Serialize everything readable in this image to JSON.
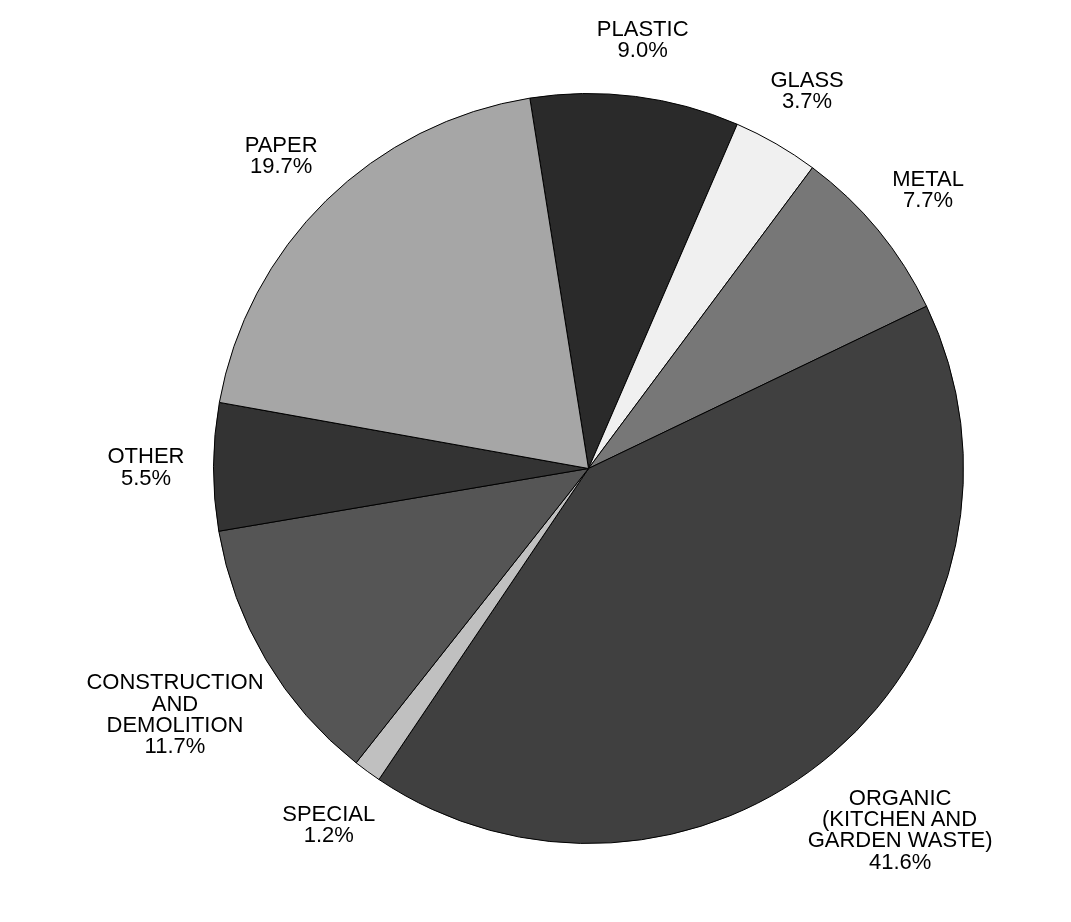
{
  "chart_data": {
    "type": "pie",
    "categories": [
      "PLASTIC",
      "GLASS",
      "METAL",
      "ORGANIC (KITCHEN AND GARDEN WASTE)",
      "SPECIAL",
      "CONSTRUCTION AND DEMOLITION",
      "OTHER",
      "PAPER"
    ],
    "values": [
      9.0,
      3.7,
      7.7,
      41.6,
      1.2,
      11.7,
      5.5,
      19.7
    ],
    "value_labels": [
      "9.0%",
      "3.7%",
      "7.7%",
      "41.6%",
      "1.2%",
      "11.7%",
      "5.5%",
      "19.7%"
    ],
    "colors": [
      "#2a2a2a",
      "#f0f0f0",
      "#777777",
      "#404040",
      "#c0c0c0",
      "#555555",
      "#333333",
      "#a6a6a6"
    ]
  }
}
